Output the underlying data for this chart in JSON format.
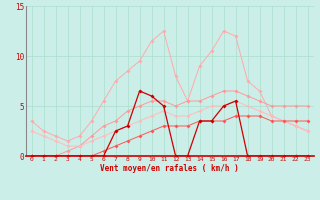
{
  "xlabel": "Vent moyen/en rafales ( km/h )",
  "bg_color": "#cceee8",
  "grid_color": "#aaddcc",
  "x_values": [
    0,
    1,
    2,
    3,
    4,
    5,
    6,
    7,
    8,
    9,
    10,
    11,
    12,
    13,
    14,
    15,
    16,
    17,
    18,
    19,
    20,
    21,
    22,
    23
  ],
  "series": [
    {
      "name": "line_volatile_pink",
      "y": [
        3.5,
        2.5,
        2.0,
        1.5,
        2.0,
        3.5,
        5.5,
        7.5,
        8.5,
        9.5,
        11.5,
        12.5,
        8.0,
        5.5,
        9.0,
        10.5,
        12.5,
        12.0,
        7.5,
        6.5,
        4.0,
        3.5,
        3.0,
        2.5
      ],
      "color": "#ffaaaa",
      "lw": 0.7,
      "ms": 2.0,
      "zorder": 2
    },
    {
      "name": "line_upper_steady",
      "y": [
        0.0,
        0.0,
        0.0,
        0.5,
        1.0,
        2.0,
        3.0,
        3.5,
        4.5,
        5.0,
        5.5,
        5.5,
        5.0,
        5.5,
        5.5,
        6.0,
        6.5,
        6.5,
        6.0,
        5.5,
        5.0,
        5.0,
        5.0,
        5.0
      ],
      "color": "#ff9999",
      "lw": 0.7,
      "ms": 2.0,
      "zorder": 2
    },
    {
      "name": "line_lower_steady",
      "y": [
        2.5,
        2.0,
        1.5,
        1.0,
        1.0,
        1.5,
        2.0,
        2.5,
        3.0,
        3.5,
        4.0,
        4.5,
        4.0,
        4.0,
        4.5,
        5.0,
        5.0,
        5.5,
        5.0,
        4.5,
        4.0,
        3.5,
        3.0,
        2.5
      ],
      "color": "#ffbbbb",
      "lw": 0.7,
      "ms": 2.0,
      "zorder": 2
    },
    {
      "name": "line_dark_red_volatile",
      "y": [
        0.0,
        0.0,
        0.0,
        0.0,
        0.0,
        0.0,
        0.0,
        2.5,
        3.0,
        6.5,
        6.0,
        5.0,
        0.0,
        0.0,
        3.5,
        3.5,
        5.0,
        5.5,
        0.0,
        0.0,
        0.0,
        0.0,
        0.0,
        0.0
      ],
      "color": "#cc0000",
      "lw": 0.9,
      "ms": 2.0,
      "zorder": 3
    },
    {
      "name": "line_medium_red_rising",
      "y": [
        0.0,
        0.0,
        0.0,
        0.0,
        0.0,
        0.0,
        0.5,
        1.0,
        1.5,
        2.0,
        2.5,
        3.0,
        3.0,
        3.0,
        3.5,
        3.5,
        3.5,
        4.0,
        4.0,
        4.0,
        3.5,
        3.5,
        3.5,
        3.5
      ],
      "color": "#ff5555",
      "lw": 0.7,
      "ms": 2.0,
      "zorder": 2
    }
  ],
  "ylim": [
    0,
    15
  ],
  "xlim_min": -0.5,
  "xlim_max": 23.5,
  "yticks": [
    0,
    5,
    10,
    15
  ],
  "xticks": [
    0,
    1,
    2,
    3,
    4,
    5,
    6,
    7,
    8,
    9,
    10,
    11,
    12,
    13,
    14,
    15,
    16,
    17,
    18,
    19,
    20,
    21,
    22,
    23
  ],
  "tick_fontsize": 4.5,
  "label_fontsize": 5.5
}
